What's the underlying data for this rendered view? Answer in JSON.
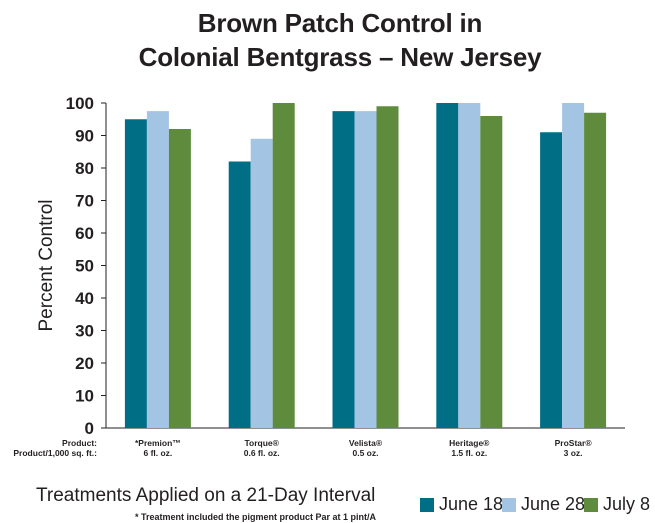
{
  "chart_data": {
    "type": "bar",
    "title_lines": [
      "Brown Patch Control in",
      "Colonial Bentgrass – New Jersey"
    ],
    "ylabel": "Percent Control",
    "ylim": [
      0,
      100
    ],
    "yticks": [
      0,
      10,
      20,
      30,
      40,
      50,
      60,
      70,
      80,
      90,
      100
    ],
    "row_headers": [
      "Product:",
      "Product/1,000 sq. ft.:"
    ],
    "categories": [
      {
        "product": "*Premion™",
        "rate": "6 fl. oz."
      },
      {
        "product": "Torque®",
        "rate": "0.6 fl. oz."
      },
      {
        "product": "Velista®",
        "rate": "0.5 oz."
      },
      {
        "product": "Heritage®",
        "rate": "1.5 fl. oz."
      },
      {
        "product": "ProStar®",
        "rate": "3 oz."
      }
    ],
    "series": [
      {
        "name": "June 18",
        "color": "#006f86",
        "values": [
          95,
          82,
          97.5,
          100,
          91
        ]
      },
      {
        "name": "June 28",
        "color": "#a4c4e4",
        "values": [
          97.5,
          89,
          97.5,
          100,
          100
        ]
      },
      {
        "name": "July 8",
        "color": "#5e8c3c",
        "values": [
          92,
          100,
          99,
          96,
          97
        ]
      }
    ],
    "legend_position": "bottom-right",
    "grid": false
  },
  "notes": {
    "treatments": "Treatments Applied on a 21-Day Interval",
    "footnote": "* Treatment included the pigment product Par at 1 pint/A"
  }
}
